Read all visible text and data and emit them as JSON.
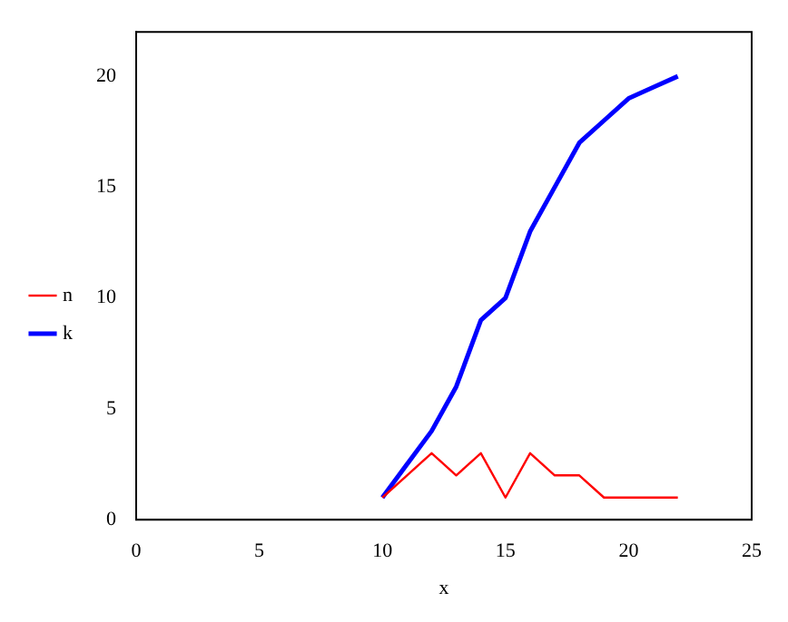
{
  "chart_data": {
    "type": "line",
    "xlabel": "x",
    "x": [
      10,
      11,
      12,
      13,
      14,
      15,
      16,
      17,
      18,
      19,
      20,
      21,
      22
    ],
    "series": [
      {
        "name": "n",
        "color": "#ff0000",
        "values": [
          1,
          2,
          3,
          2,
          3,
          1,
          3,
          2,
          2,
          1,
          1,
          1,
          1
        ]
      },
      {
        "name": "k",
        "color": "#0000ff",
        "values": [
          1,
          2.5,
          4,
          6,
          9,
          10,
          13,
          15,
          17,
          18,
          19,
          19.5,
          20
        ]
      }
    ],
    "xlim": [
      0,
      25
    ],
    "xticks": [
      0,
      5,
      10,
      15,
      20,
      25
    ],
    "ylim": [
      0,
      22
    ],
    "yticks": [
      0,
      5,
      10,
      15,
      20
    ],
    "grid": false,
    "legend": "left",
    "marker": "none",
    "line_style": "solid"
  }
}
